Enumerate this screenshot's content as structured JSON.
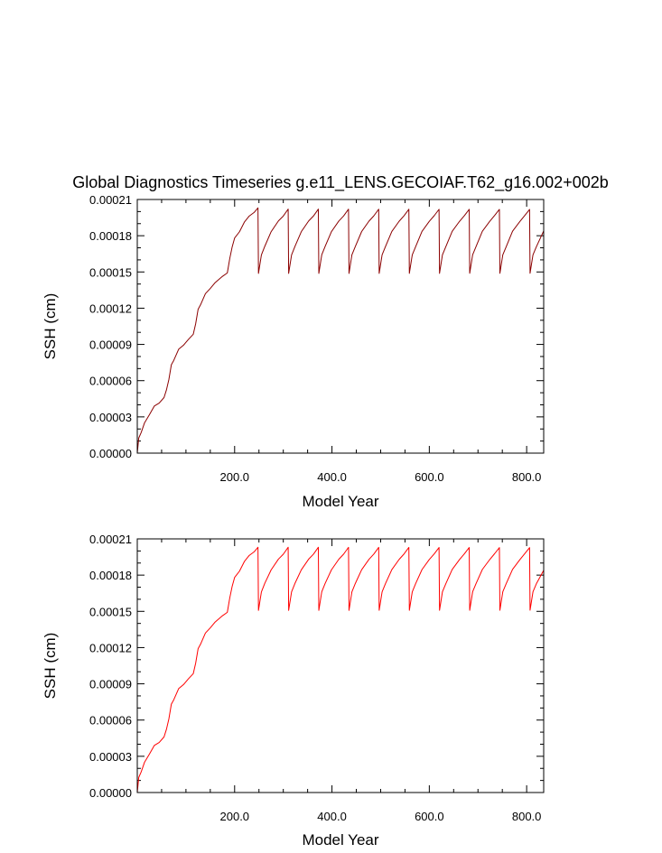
{
  "chart_data": [
    {
      "type": "line",
      "title": "Global Diagnostics Timeseries g.e11_LENS.GECOIAF.T62_g16.002+002b",
      "xlabel": "Model Year",
      "ylabel": "SSH (cm)",
      "xlim": [
        0,
        835
      ],
      "ylim": [
        0,
        0.00021
      ],
      "xticks": [
        200,
        400,
        600,
        800
      ],
      "xtick_labels": [
        "200.0",
        "400.0",
        "600.0",
        "800.0"
      ],
      "yticks": [
        0,
        3e-05,
        6e-05,
        9e-05,
        0.00012,
        0.00015,
        0.00018,
        0.00021
      ],
      "ytick_labels": [
        "0.00000",
        "0.00003",
        "0.00006",
        "0.00009",
        "0.00012",
        "0.00015",
        "0.00018",
        "0.00021"
      ],
      "series": [
        {
          "name": "SSH",
          "color": "#8b0000",
          "x": [
            0,
            3,
            8,
            15,
            25,
            35,
            45,
            55,
            60,
            65,
            70,
            75,
            85,
            95,
            105,
            115,
            120,
            125,
            130,
            140,
            150,
            160,
            175,
            185,
            190,
            195,
            200,
            210,
            220,
            230,
            240,
            248,
            249,
            255,
            262,
            275,
            290,
            300,
            310,
            311,
            317,
            324,
            337,
            352,
            362,
            372,
            373,
            379,
            386,
            399,
            414,
            424,
            434,
            435,
            441,
            448,
            461,
            476,
            486,
            496,
            497,
            503,
            510,
            523,
            538,
            548,
            558,
            559,
            565,
            572,
            585,
            600,
            610,
            620,
            621,
            627,
            634,
            647,
            662,
            672,
            682,
            683,
            689,
            696,
            709,
            724,
            734,
            744,
            745,
            751,
            758,
            771,
            786,
            796,
            806,
            807,
            813,
            820,
            835
          ],
          "y": [
            0,
            1.2e-05,
            1.8e-05,
            2.4e-05,
            3.3e-05,
            3.8e-05,
            4.2e-05,
            4.6e-05,
            5.2e-05,
            6.2e-05,
            7.2e-05,
            7.8e-05,
            8.5e-05,
            9e-05,
            9.4e-05,
            9.8e-05,
            0.000108,
            0.000118,
            0.000124,
            0.000131,
            0.000137,
            0.000141,
            0.000146,
            0.00015,
            0.00016,
            0.000172,
            0.000177,
            0.000184,
            0.000191,
            0.000196,
            0.0002,
            0.000202,
            0.00015,
            0.000163,
            0.000172,
            0.000183,
            0.000192,
            0.000197,
            0.000201,
            0.00015,
            0.000163,
            0.000172,
            0.000183,
            0.000192,
            0.000197,
            0.000201,
            0.00015,
            0.000163,
            0.000172,
            0.000183,
            0.000192,
            0.000197,
            0.000201,
            0.00015,
            0.000163,
            0.000172,
            0.000183,
            0.000192,
            0.000197,
            0.000201,
            0.00015,
            0.000163,
            0.000172,
            0.000183,
            0.000192,
            0.000197,
            0.000201,
            0.00015,
            0.000163,
            0.000172,
            0.000183,
            0.000192,
            0.000197,
            0.000201,
            0.00015,
            0.000163,
            0.000172,
            0.000183,
            0.000192,
            0.000197,
            0.000201,
            0.00015,
            0.000163,
            0.000172,
            0.000183,
            0.000192,
            0.000197,
            0.000201,
            0.00015,
            0.000163,
            0.000172,
            0.000183,
            0.000192,
            0.000197,
            0.000201,
            0.00015,
            0.000163,
            0.000172,
            0.000184
          ]
        }
      ]
    },
    {
      "type": "line",
      "title": "",
      "xlabel": "Model Year",
      "ylabel": "SSH (cm)",
      "xlim": [
        0,
        835
      ],
      "ylim": [
        0,
        0.00021
      ],
      "xticks": [
        200,
        400,
        600,
        800
      ],
      "xtick_labels": [
        "200.0",
        "400.0",
        "600.0",
        "800.0"
      ],
      "yticks": [
        0,
        3e-05,
        6e-05,
        9e-05,
        0.00012,
        0.00015,
        0.00018,
        0.00021
      ],
      "ytick_labels": [
        "0.00000",
        "0.00003",
        "0.00006",
        "0.00009",
        "0.00012",
        "0.00015",
        "0.00018",
        "0.00021"
      ],
      "series": [
        {
          "name": "SSH",
          "color": "#ff0000",
          "x": [
            0,
            3,
            8,
            15,
            25,
            35,
            45,
            55,
            60,
            65,
            70,
            75,
            85,
            95,
            105,
            115,
            120,
            125,
            130,
            140,
            150,
            160,
            175,
            185,
            190,
            195,
            200,
            210,
            220,
            230,
            240,
            248,
            249,
            255,
            262,
            275,
            290,
            300,
            310,
            311,
            317,
            324,
            337,
            352,
            362,
            372,
            373,
            379,
            386,
            399,
            414,
            424,
            434,
            435,
            441,
            448,
            461,
            476,
            486,
            496,
            497,
            503,
            510,
            523,
            538,
            548,
            558,
            559,
            565,
            572,
            585,
            600,
            610,
            620,
            621,
            627,
            634,
            647,
            662,
            672,
            682,
            683,
            689,
            696,
            709,
            724,
            734,
            744,
            745,
            751,
            758,
            771,
            786,
            796,
            806,
            807,
            813,
            820,
            835
          ],
          "y": [
            0,
            1.2e-05,
            1.8e-05,
            2.4e-05,
            3.3e-05,
            3.8e-05,
            4.2e-05,
            4.6e-05,
            5.2e-05,
            6.2e-05,
            7.2e-05,
            7.8e-05,
            8.5e-05,
            9e-05,
            9.4e-05,
            9.8e-05,
            0.000108,
            0.000118,
            0.000124,
            0.000131,
            0.000137,
            0.000141,
            0.000146,
            0.00015,
            0.00016,
            0.000172,
            0.000177,
            0.000184,
            0.000191,
            0.000196,
            0.0002,
            0.000202,
            0.000152,
            0.000165,
            0.000174,
            0.000184,
            0.000193,
            0.000198,
            0.000202,
            0.000152,
            0.000165,
            0.000174,
            0.000184,
            0.000193,
            0.000198,
            0.000202,
            0.000152,
            0.000165,
            0.000174,
            0.000184,
            0.000193,
            0.000198,
            0.000202,
            0.000152,
            0.000165,
            0.000174,
            0.000184,
            0.000193,
            0.000198,
            0.000202,
            0.000152,
            0.000165,
            0.000174,
            0.000184,
            0.000193,
            0.000198,
            0.000202,
            0.000152,
            0.000165,
            0.000174,
            0.000184,
            0.000193,
            0.000198,
            0.000202,
            0.000152,
            0.000165,
            0.000174,
            0.000184,
            0.000193,
            0.000198,
            0.000202,
            0.000152,
            0.000165,
            0.000174,
            0.000184,
            0.000193,
            0.000198,
            0.000202,
            0.000152,
            0.000165,
            0.000174,
            0.000184,
            0.000193,
            0.000198,
            0.000202,
            0.000152,
            0.000165,
            0.000174,
            0.000184
          ]
        }
      ]
    }
  ]
}
